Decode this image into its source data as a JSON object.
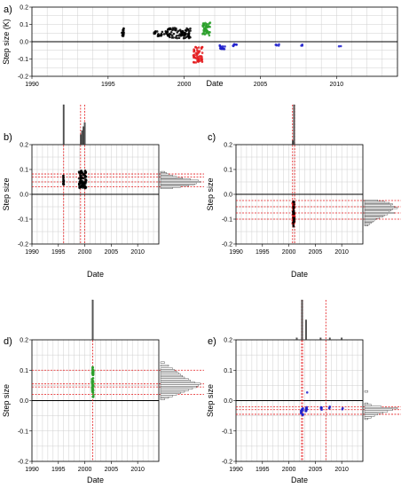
{
  "chart_data": [
    {
      "panel": "a)",
      "type": "scatter",
      "xlabel": "Date",
      "ylabel": "Step size (K)",
      "xlim": [
        1990,
        2014
      ],
      "ylim": [
        -0.2,
        0.2
      ],
      "xticks": [
        1990,
        1995,
        2000,
        2005,
        2010
      ],
      "yticks": [
        -0.2,
        -0.1,
        0.0,
        0.1,
        0.2
      ],
      "grid": true,
      "zero_line": true,
      "clusters": [
        {
          "color": "#000000",
          "x_range": [
            1995.9,
            1996.05
          ],
          "y_range": [
            0.03,
            0.08
          ],
          "n": 16
        },
        {
          "color": "#000000",
          "x_range": [
            1998.0,
            1998.8
          ],
          "y_range": [
            0.03,
            0.06
          ],
          "n": 20
        },
        {
          "color": "#000000",
          "x_range": [
            1998.8,
            2000.4
          ],
          "y_range": [
            0.02,
            0.08
          ],
          "n": 90
        },
        {
          "color": "#e41a1c",
          "x_range": [
            2000.6,
            2001.2
          ],
          "y_range": [
            -0.12,
            -0.03
          ],
          "n": 55
        },
        {
          "color": "#2ca02c",
          "x_range": [
            2001.2,
            2001.7
          ],
          "y_range": [
            0.03,
            0.11
          ],
          "n": 50
        },
        {
          "color": "#1f1fcc",
          "x_range": [
            2002.3,
            2002.7
          ],
          "y_range": [
            -0.045,
            -0.02
          ],
          "n": 14
        },
        {
          "color": "#1f1fcc",
          "x_range": [
            2003.2,
            2003.5
          ],
          "y_range": [
            -0.03,
            -0.015
          ],
          "n": 8
        },
        {
          "color": "#1f1fcc",
          "x_range": [
            2006.0,
            2006.3
          ],
          "y_range": [
            -0.025,
            -0.015
          ],
          "n": 5
        },
        {
          "color": "#1f1fcc",
          "x_range": [
            2007.6,
            2007.8
          ],
          "y_range": [
            -0.025,
            -0.015
          ],
          "n": 3
        },
        {
          "color": "#1f1fcc",
          "x_range": [
            2010.1,
            2010.3
          ],
          "y_range": [
            -0.028,
            -0.02
          ],
          "n": 2
        }
      ]
    },
    {
      "panel": "b)",
      "type": "scatter",
      "xlabel": "Date",
      "ylabel": "Step size",
      "xlim": [
        1990,
        2014
      ],
      "ylim": [
        -0.2,
        0.2
      ],
      "xticks": [
        1990,
        1995,
        2000,
        2005,
        2010
      ],
      "yticks": [
        -0.2,
        -0.1,
        0.0,
        0.1,
        0.2
      ],
      "grid": true,
      "zero_line": true,
      "vlines": [
        1996.0,
        1999.2,
        2000.0
      ],
      "hlines": [
        0.03,
        0.05,
        0.07,
        0.082
      ],
      "clusters": [
        {
          "color": "#000000",
          "x_range": [
            1995.9,
            1996.05
          ],
          "y_range": [
            0.03,
            0.08
          ],
          "n": 16
        },
        {
          "color": "#000000",
          "x_range": [
            1998.9,
            2000.3
          ],
          "y_range": [
            0.025,
            0.095
          ],
          "n": 90
        }
      ],
      "top_histogram": {
        "bin_width": 0.25,
        "bars": [
          [
            1996.0,
            1.0
          ],
          [
            1999.25,
            0.25
          ],
          [
            1999.5,
            0.35
          ],
          [
            1999.75,
            0.45
          ],
          [
            2000.0,
            0.55
          ]
        ]
      },
      "right_histogram": {
        "bin_width": 0.005,
        "bars": [
          [
            0.025,
            0.3
          ],
          [
            0.03,
            0.5
          ],
          [
            0.035,
            0.7
          ],
          [
            0.04,
            0.85
          ],
          [
            0.045,
            0.9
          ],
          [
            0.05,
            1.0
          ],
          [
            0.055,
            0.95
          ],
          [
            0.06,
            0.75
          ],
          [
            0.065,
            0.55
          ],
          [
            0.07,
            0.4
          ],
          [
            0.075,
            0.3
          ],
          [
            0.08,
            0.2
          ],
          [
            0.085,
            0.15
          ],
          [
            0.09,
            0.1
          ]
        ]
      }
    },
    {
      "panel": "c)",
      "type": "scatter",
      "xlabel": "Date",
      "ylabel": "Step size",
      "xlim": [
        1990,
        2014
      ],
      "ylim": [
        -0.2,
        0.2
      ],
      "xticks": [
        1990,
        1995,
        2000,
        2005,
        2010
      ],
      "yticks": [
        -0.2,
        -0.1,
        0.0,
        0.1,
        0.2
      ],
      "grid": true,
      "zero_line": true,
      "vlines": [
        2000.7,
        2001.1
      ],
      "hlines": [
        -0.025,
        -0.05,
        -0.075,
        -0.1
      ],
      "clusters": [
        {
          "color": "#e41a1c",
          "x_range": [
            2000.7,
            2001.1
          ],
          "y_range": [
            -0.12,
            -0.03
          ],
          "n": 55
        },
        {
          "color": "#000000",
          "x_range": [
            2000.75,
            2001.05
          ],
          "y_range": [
            -0.13,
            -0.02
          ],
          "n": 25
        }
      ],
      "top_histogram": {
        "bin_width": 0.25,
        "bars": [
          [
            2000.75,
            0.1
          ],
          [
            2001.0,
            1.0
          ]
        ]
      },
      "right_histogram": {
        "bin_width": 0.005,
        "bars": [
          [
            -0.025,
            0.4
          ],
          [
            -0.03,
            0.6
          ],
          [
            -0.035,
            0.75
          ],
          [
            -0.04,
            0.85
          ],
          [
            -0.045,
            0.8
          ],
          [
            -0.05,
            0.9
          ],
          [
            -0.055,
            1.0
          ],
          [
            -0.06,
            0.85
          ],
          [
            -0.065,
            0.8
          ],
          [
            -0.07,
            0.75
          ],
          [
            -0.075,
            0.9
          ],
          [
            -0.08,
            0.7
          ],
          [
            -0.085,
            0.6
          ],
          [
            -0.09,
            0.55
          ],
          [
            -0.095,
            0.45
          ],
          [
            -0.1,
            0.35
          ],
          [
            -0.105,
            0.3
          ],
          [
            -0.11,
            0.25
          ],
          [
            -0.115,
            0.2
          ],
          [
            -0.12,
            0.15
          ],
          [
            -0.125,
            0.1
          ]
        ]
      }
    },
    {
      "panel": "d)",
      "type": "scatter",
      "xlabel": "Date",
      "ylabel": "Step size",
      "xlim": [
        1990,
        2014
      ],
      "ylim": [
        -0.2,
        0.2
      ],
      "xticks": [
        1990,
        1995,
        2000,
        2005,
        2010
      ],
      "yticks": [
        -0.2,
        -0.1,
        0.0,
        0.1,
        0.2
      ],
      "grid": true,
      "zero_line": true,
      "vlines": [
        2001.5
      ],
      "hlines": [
        0.1,
        0.055,
        0.045,
        0.02
      ],
      "clusters": [
        {
          "color": "#2ca02c",
          "x_range": [
            2001.35,
            2001.65
          ],
          "y_range": [
            0.01,
            0.11
          ],
          "n": 60
        }
      ],
      "top_histogram": {
        "bin_width": 0.25,
        "bars": [
          [
            2001.5,
            1.0
          ]
        ]
      },
      "right_histogram": {
        "bin_width": 0.005,
        "bars": [
          [
            0.125,
            0.1
          ],
          [
            0.115,
            0.2
          ],
          [
            0.105,
            0.3
          ],
          [
            0.1,
            0.35
          ],
          [
            0.095,
            0.4
          ],
          [
            0.09,
            0.45
          ],
          [
            0.085,
            0.5
          ],
          [
            0.08,
            0.55
          ],
          [
            0.075,
            0.6
          ],
          [
            0.07,
            0.7
          ],
          [
            0.065,
            0.75
          ],
          [
            0.06,
            0.85
          ],
          [
            0.055,
            1.0
          ],
          [
            0.05,
            0.95
          ],
          [
            0.045,
            0.9
          ],
          [
            0.04,
            0.8
          ],
          [
            0.035,
            0.7
          ],
          [
            0.03,
            0.6
          ],
          [
            0.025,
            0.5
          ],
          [
            0.02,
            0.4
          ],
          [
            0.015,
            0.3
          ],
          [
            0.01,
            0.2
          ],
          [
            0.005,
            0.1
          ]
        ]
      }
    },
    {
      "panel": "e)",
      "type": "scatter",
      "xlabel": "Date",
      "ylabel": "Step size",
      "xlim": [
        1990,
        2014
      ],
      "ylim": [
        -0.2,
        0.2
      ],
      "xticks": [
        1990,
        1995,
        2000,
        2005,
        2010
      ],
      "yticks": [
        -0.2,
        -0.1,
        0.0,
        0.1,
        0.2
      ],
      "grid": true,
      "zero_line": true,
      "vlines": [
        2002.4,
        2002.6,
        2007.0
      ],
      "hlines": [
        -0.02,
        -0.03,
        -0.045
      ],
      "clusters": [
        {
          "color": "#1f1fcc",
          "x_range": [
            2002.3,
            2002.7
          ],
          "y_range": [
            -0.05,
            -0.02
          ],
          "n": 14
        },
        {
          "color": "#1f1fcc",
          "x_range": [
            2003.1,
            2003.5
          ],
          "y_range": [
            -0.035,
            -0.02
          ],
          "n": 8
        },
        {
          "color": "#1f1fcc",
          "x_range": [
            2006.0,
            2006.3
          ],
          "y_range": [
            -0.03,
            -0.02
          ],
          "n": 5
        },
        {
          "color": "#1f1fcc",
          "x_range": [
            2007.6,
            2007.8
          ],
          "y_range": [
            -0.028,
            -0.02
          ],
          "n": 3
        },
        {
          "color": "#1f1fcc",
          "x_range": [
            2003.3,
            2003.5
          ],
          "y_range": [
            0.025,
            0.03
          ],
          "n": 1
        },
        {
          "color": "#1f1fcc",
          "x_range": [
            2010.1,
            2010.3
          ],
          "y_range": [
            -0.03,
            -0.025
          ],
          "n": 2
        }
      ],
      "top_histogram": {
        "bin_width": 0.25,
        "bars": [
          [
            2001.5,
            0.05
          ],
          [
            2002.5,
            1.0
          ],
          [
            2003.25,
            0.5
          ],
          [
            2006.0,
            0.05
          ],
          [
            2007.75,
            0.05
          ],
          [
            2010.0,
            0.05
          ]
        ]
      },
      "right_histogram": {
        "bin_width": 0.005,
        "bars": [
          [
            0.03,
            0.1
          ],
          [
            -0.01,
            0.1
          ],
          [
            -0.015,
            0.2
          ],
          [
            -0.02,
            0.5
          ],
          [
            -0.025,
            1.0
          ],
          [
            -0.03,
            0.85
          ],
          [
            -0.035,
            0.7
          ],
          [
            -0.04,
            0.55
          ],
          [
            -0.045,
            0.4
          ],
          [
            -0.05,
            0.3
          ],
          [
            -0.055,
            0.2
          ],
          [
            -0.06,
            0.1
          ]
        ]
      }
    }
  ]
}
